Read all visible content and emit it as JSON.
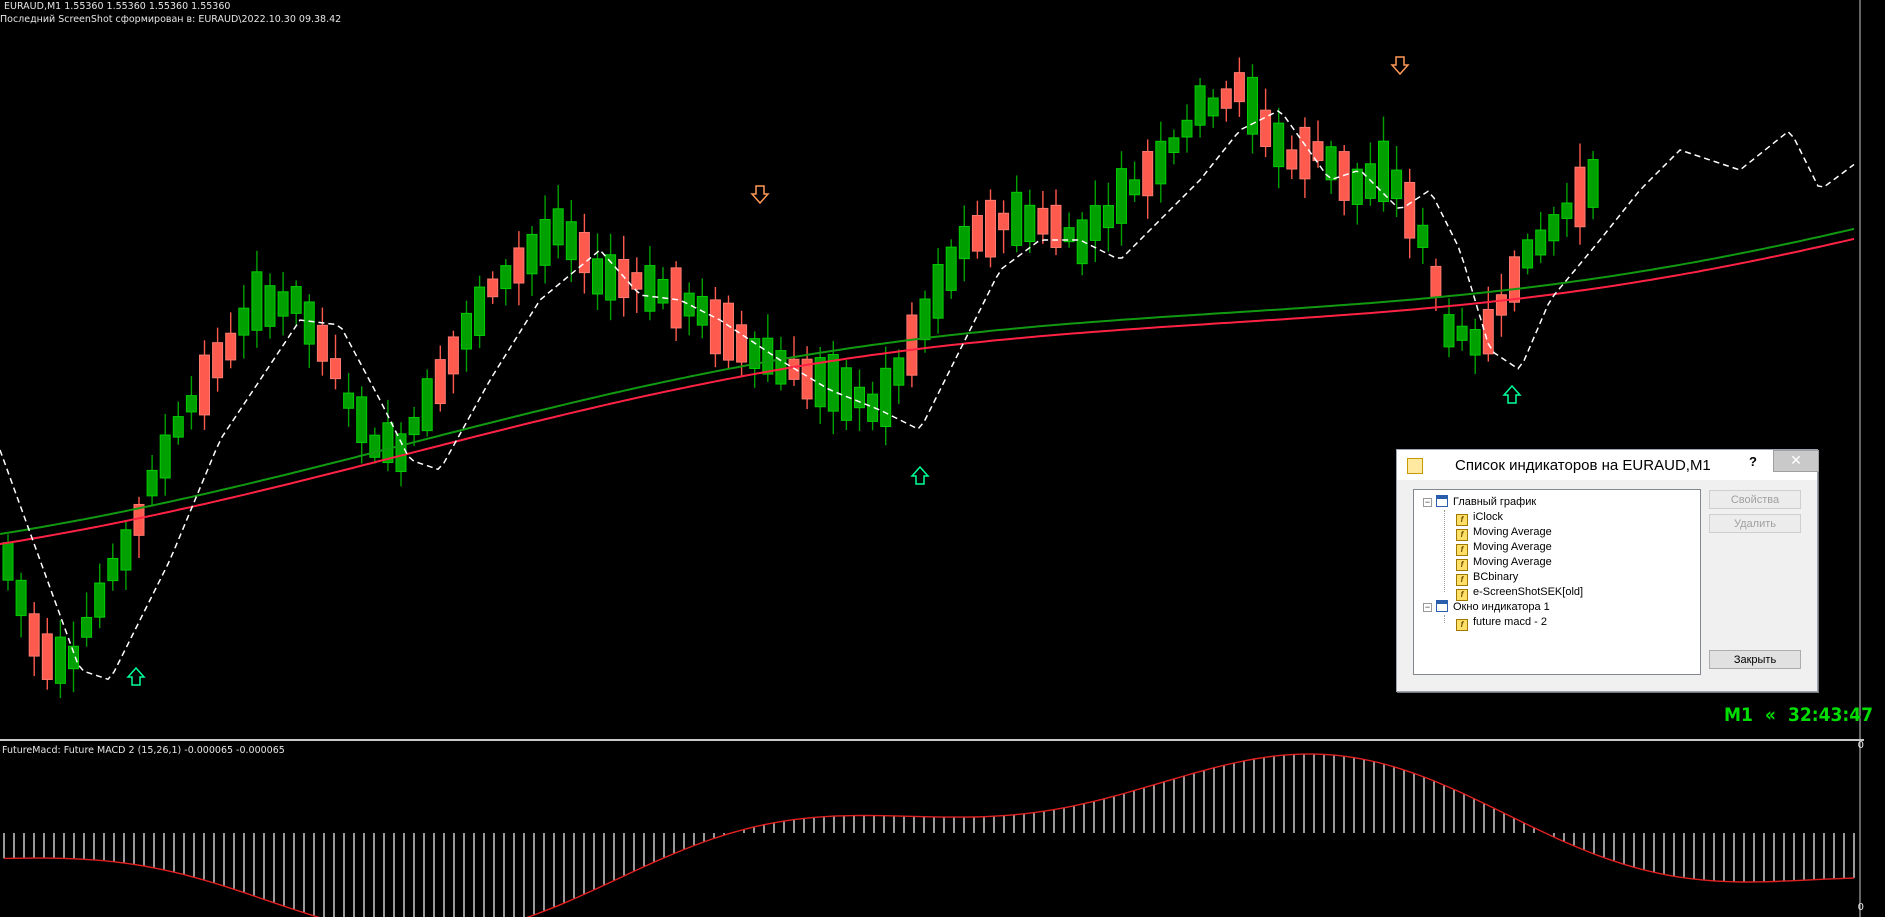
{
  "chart": {
    "header_line1": "EURAUD,M1  1.55360 1.55360 1.55360 1.55360",
    "header_line2": "Последний ScreenShot сформирован в: EURAUD\\2022.10.30 09.38.42",
    "clock_timeframe": "M1",
    "clock_arrows": "«",
    "clock_time": "32:43:47",
    "colors": {
      "bull": "#00a000",
      "bear": "#ff5a4e",
      "ma_green": "#119911",
      "ma_red": "#ff2244",
      "ma_dash": "#ffffff",
      "up_arrow": "#00ff99",
      "down_arrow": "#ff9955"
    }
  },
  "subwindow": {
    "header": "FutureMacd: Future MACD 2 (15,26,1) -0.000065 -0.000065",
    "scale_top": "0",
    "scale_bottom": "0"
  },
  "dialog": {
    "title": "Список индикаторов на EURAUD,M1",
    "help": "?",
    "close_x": "✕",
    "tree": [
      {
        "label": "Главный график",
        "kind": "window"
      },
      {
        "label": "iClock",
        "kind": "indicator"
      },
      {
        "label": "Moving Average",
        "kind": "indicator"
      },
      {
        "label": "Moving Average",
        "kind": "indicator"
      },
      {
        "label": "Moving Average",
        "kind": "indicator"
      },
      {
        "label": "BCbinary",
        "kind": "indicator"
      },
      {
        "label": "e-ScreenShotSEK[old]",
        "kind": "indicator"
      },
      {
        "label": "Окно индикатора 1",
        "kind": "window"
      },
      {
        "label": "future macd - 2",
        "kind": "indicator"
      }
    ],
    "buttons": {
      "properties": "Свойства",
      "delete": "Удалить",
      "close": "Закрыть"
    }
  },
  "chart_data": {
    "type": "candlestick",
    "candles_direction": "U U D D U U U U U U D U U U U D D D U U U U U U D D U U U U U U U D D U U D U D U U U U D U U D D U U D U U D D D U U U D D U U U U U U U D U U U U D D D U U D D U U U U U U D U U U U U D D U D U D D D U D U U U U D U D U U U D D D U U U U D U",
    "signals": [
      {
        "type": "up"
      },
      {
        "type": "down"
      },
      {
        "type": "up"
      },
      {
        "type": "down"
      },
      {
        "type": "up"
      }
    ]
  }
}
